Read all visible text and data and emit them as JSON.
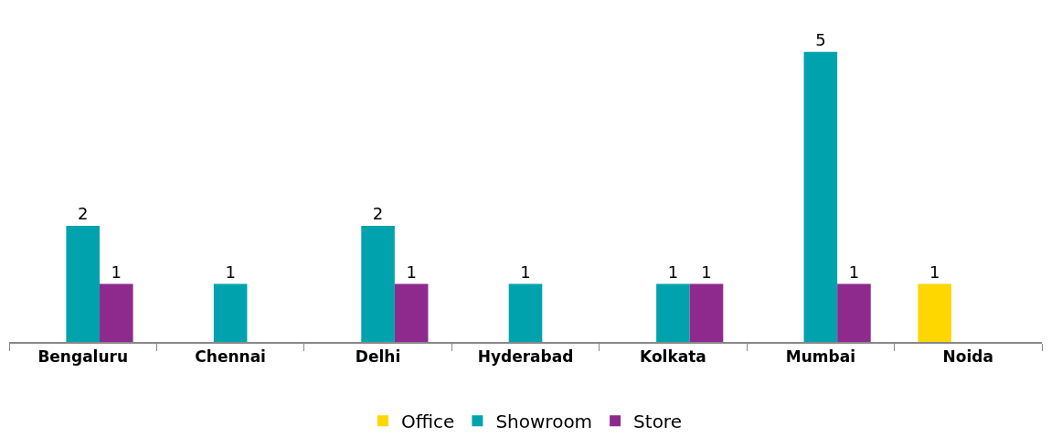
{
  "chart_data": {
    "type": "bar",
    "categories": [
      "Bengaluru",
      "Chennai",
      "Delhi",
      "Hyderabad",
      "Kolkata",
      "Mumbai",
      "Noida"
    ],
    "series": [
      {
        "name": "Office",
        "color": "#ffd700",
        "values": [
          null,
          null,
          null,
          null,
          null,
          null,
          1
        ]
      },
      {
        "name": "Showroom",
        "color": "#00a3ad",
        "values": [
          2,
          1,
          2,
          1,
          1,
          5,
          null
        ]
      },
      {
        "name": "Store",
        "color": "#8e2a8e",
        "values": [
          1,
          null,
          1,
          null,
          1,
          1,
          null
        ]
      }
    ],
    "data_labels": true,
    "legend": "bottom",
    "tick_labels": "x"
  }
}
